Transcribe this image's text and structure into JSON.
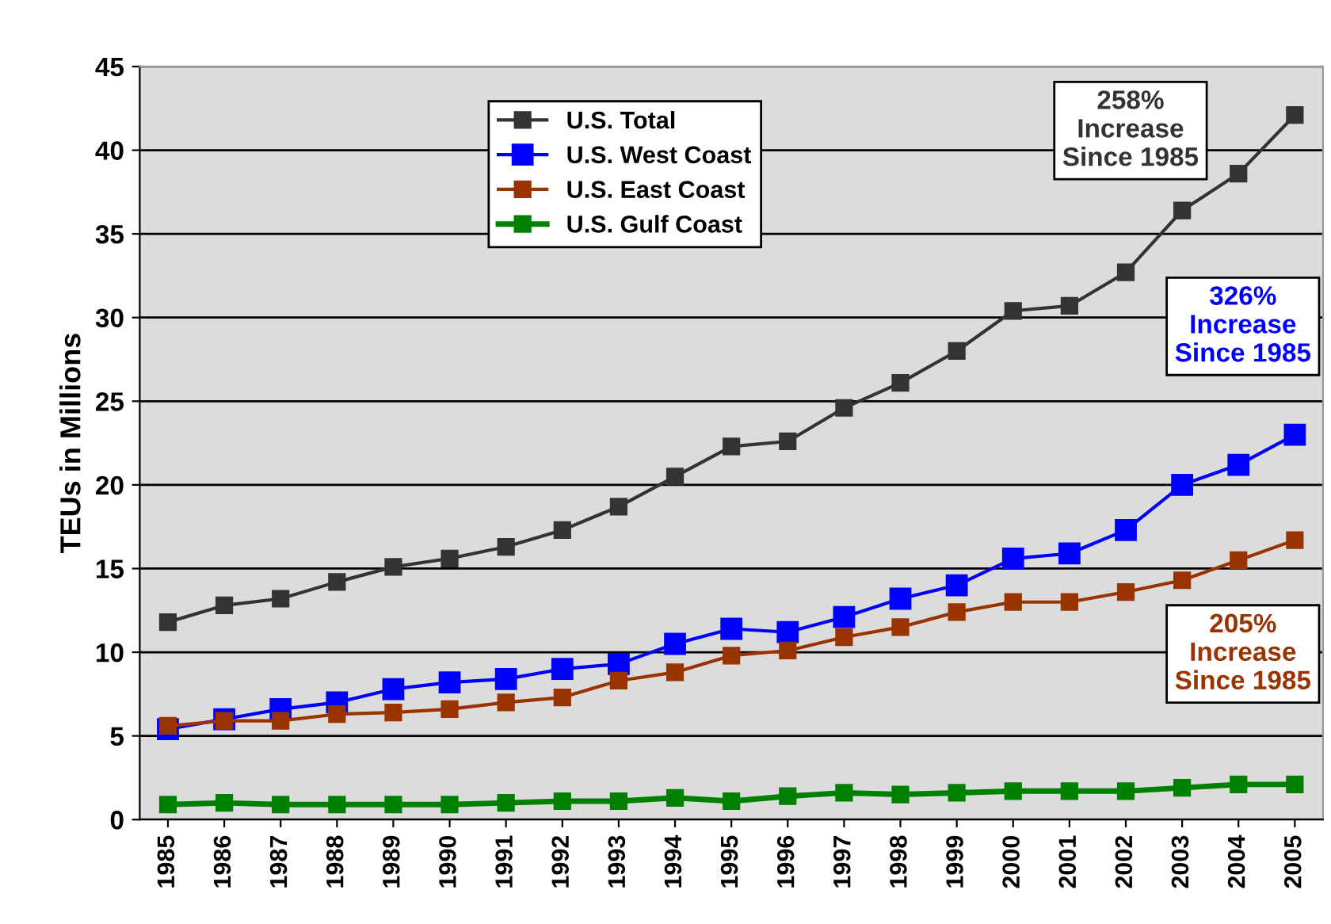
{
  "chart_data": {
    "type": "line",
    "ylabel": "TEUs in Millions",
    "categories": [
      "1985",
      "1986",
      "1987",
      "1988",
      "1989",
      "1990",
      "1991",
      "1992",
      "1993",
      "1994",
      "1995",
      "1996",
      "1997",
      "1998",
      "1999",
      "2000",
      "2001",
      "2002",
      "2003",
      "2004",
      "2005"
    ],
    "series": [
      {
        "name": "U.S. Total",
        "color": "#333333",
        "values": [
          11.8,
          12.8,
          13.2,
          14.2,
          15.1,
          15.6,
          16.3,
          17.3,
          18.7,
          20.5,
          22.3,
          22.6,
          24.6,
          26.1,
          28.0,
          30.4,
          30.7,
          32.7,
          36.4,
          38.6,
          42.1
        ]
      },
      {
        "name": "U.S. West Coast",
        "color": "#0000ff",
        "values": [
          5.4,
          6.0,
          6.6,
          7.0,
          7.8,
          8.2,
          8.4,
          9.0,
          9.3,
          10.5,
          11.4,
          11.2,
          12.1,
          13.2,
          14.0,
          15.6,
          15.9,
          17.3,
          20.0,
          21.2,
          23.0
        ]
      },
      {
        "name": "U.S. East Coast",
        "color": "#993300",
        "values": [
          5.6,
          5.9,
          5.9,
          6.3,
          6.4,
          6.6,
          7.0,
          7.3,
          8.3,
          8.8,
          9.8,
          10.1,
          10.9,
          11.5,
          12.4,
          13.0,
          13.0,
          13.6,
          14.3,
          15.5,
          16.7
        ]
      },
      {
        "name": "U.S. Gulf Coast",
        "color": "#008000",
        "values": [
          0.9,
          1.0,
          0.9,
          0.9,
          0.9,
          0.9,
          1.0,
          1.1,
          1.1,
          1.3,
          1.1,
          1.4,
          1.6,
          1.5,
          1.6,
          1.7,
          1.7,
          1.7,
          1.9,
          2.1,
          2.1
        ]
      }
    ],
    "annotations": [
      "258%\nIncrease\nSince 1985",
      "326%\nIncrease\nSince 1985",
      "205%\nIncrease\nSince 1985"
    ],
    "ylim": [
      0,
      45
    ],
    "yticks": [
      0,
      5,
      10,
      15,
      20,
      25,
      30,
      35,
      40,
      45
    ],
    "grid": "y",
    "legend": "top",
    "marker": "square",
    "line_style": "solid"
  }
}
